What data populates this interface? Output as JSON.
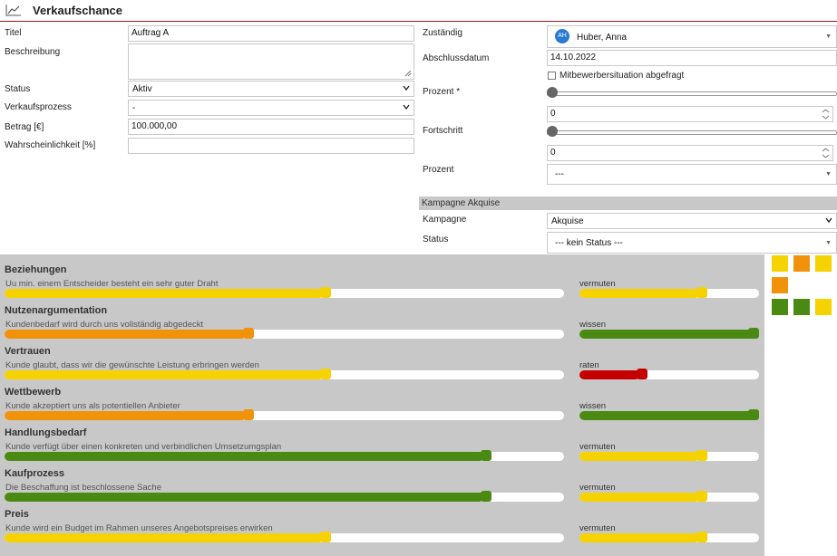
{
  "header": {
    "title": "Verkaufschance"
  },
  "left_form": {
    "titel_label": "Titel",
    "titel_value": "Auftrag A",
    "beschreibung_label": "Beschreibung",
    "status_label": "Status",
    "status_value": "Aktiv",
    "verkaufsprozess_label": "Verkaufsprozess",
    "verkaufsprozess_value": "-",
    "betrag_label": "Betrag [€]",
    "betrag_value": "100.000,00",
    "wahrscheinlichkeit_label": "Wahrscheinlichkeit [%]",
    "wahrscheinlichkeit_value": ""
  },
  "right_form": {
    "zustaendig_label": "Zuständig",
    "zustaendig_initials": "AH",
    "zustaendig_value": "Huber, Anna",
    "abschluss_label": "Abschlussdatum",
    "abschluss_value": "14.10.2022",
    "mitbewerber_label": "Mitbewerbersituation abgefragt",
    "prozent_required_label": "Prozent *",
    "prozent_required_value": "0",
    "prozent_required_slider": 0,
    "fortschritt_label": "Fortschritt",
    "fortschritt_value": "0",
    "fortschritt_slider": 0,
    "prozent_label": "Prozent",
    "prozent_value": "---"
  },
  "kampagne": {
    "header": "Kampagne Akquise",
    "kampagne_label": "Kampagne",
    "kampagne_value": "Akquise",
    "status_label": "Status",
    "status_value": "--- kein Status ---"
  },
  "colors": {
    "yellow": "#f5d200",
    "orange": "#f0920a",
    "green": "#4a8a12",
    "red": "#c40000"
  },
  "criteria": [
    {
      "title": "Beziehungen",
      "description": "Uu min. einem Entscheider besteht ein sehr guter Draht",
      "value": 0.57,
      "color": "yellow",
      "level_label": "vermuten",
      "level_value": 0.67,
      "level_color": "yellow"
    },
    {
      "title": "Nutzenargumentation",
      "description": "Kundenbedarf wird durch uns vollständig abgedeckt",
      "value": 0.43,
      "color": "orange",
      "level_label": "wissen",
      "level_value": 1.0,
      "level_color": "green"
    },
    {
      "title": "Vertrauen",
      "description": "Kunde glaubt, dass wir die gewünschte Leistung erbringen werden",
      "value": 0.57,
      "color": "yellow",
      "level_label": "raten",
      "level_value": 0.33,
      "level_color": "red"
    },
    {
      "title": "Wettbewerb",
      "description": "Kunde akzeptiert uns als potentiellen Anbieter",
      "value": 0.43,
      "color": "orange",
      "level_label": "wissen",
      "level_value": 1.0,
      "level_color": "green"
    },
    {
      "title": "Handlungsbedarf",
      "description": "Kunde verfügt über einen konkreten und verbindlichen Umsetzumgsplan",
      "value": 0.86,
      "color": "green",
      "level_label": "vermuten",
      "level_value": 0.67,
      "level_color": "yellow"
    },
    {
      "title": "Kaufprozess",
      "description": "Die Beschaffung ist beschlossene Sache",
      "value": 0.86,
      "color": "green",
      "level_label": "vermuten",
      "level_value": 0.67,
      "level_color": "yellow"
    },
    {
      "title": "Preis",
      "description": "Kunde wird ein Budget im Rahmen unseres Angebotspreises erwirken",
      "value": 0.57,
      "color": "yellow",
      "level_label": "vermuten",
      "level_value": 0.67,
      "level_color": "yellow"
    }
  ],
  "squares": [
    "yellow",
    "orange",
    "yellow",
    "orange",
    "green",
    "green",
    "yellow"
  ]
}
